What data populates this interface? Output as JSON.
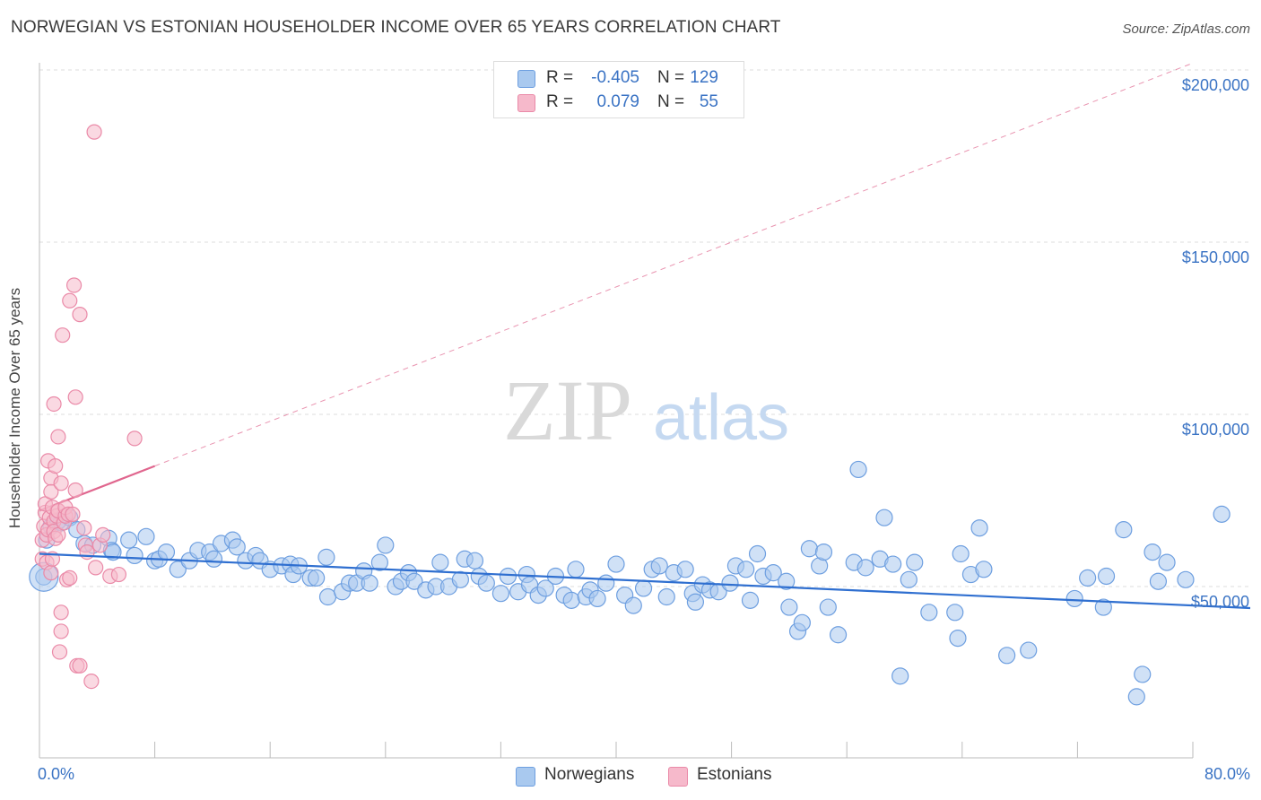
{
  "title": "NORWEGIAN VS ESTONIAN HOUSEHOLDER INCOME OVER 65 YEARS CORRELATION CHART",
  "source": "Source: ZipAtlas.com",
  "watermark": {
    "zip": "ZIP",
    "atlas": "atlas"
  },
  "legend": {
    "rows": [
      {
        "r_label": "R =",
        "r_value": "-0.405",
        "n_label": "N =",
        "n_value": "129"
      },
      {
        "r_label": "R =",
        "r_value": "0.079",
        "n_label": "N =",
        "n_value": "55"
      }
    ]
  },
  "bottom_legend": {
    "norwegians": "Norwegians",
    "estonians": "Estonians"
  },
  "colors": {
    "norwegian_fill": "#a9c9ef",
    "norwegian_stroke": "#6e9fe0",
    "norwegian_line": "#2f6fd0",
    "estonian_fill": "#f6b9cb",
    "estonian_stroke": "#ea8aa8",
    "estonian_line": "#e0668e",
    "tick": "#3a73c4",
    "grid": "#dddddd"
  },
  "chart_data": {
    "type": "scatter",
    "title": "NORWEGIAN VS ESTONIAN HOUSEHOLDER INCOME OVER 65 YEARS CORRELATION CHART",
    "xlabel": "",
    "ylabel": "Householder Income Over 65 years",
    "xlim": [
      0,
      80
    ],
    "ylim": [
      5000,
      210000
    ],
    "x_tick_labels": [
      "0.0%",
      "80.0%"
    ],
    "y_ticks": [
      50000,
      100000,
      150000,
      200000
    ],
    "y_tick_labels": [
      "$50,000",
      "$100,000",
      "$150,000",
      "$200,000"
    ],
    "grid": true,
    "legend_position": "top-center",
    "series": [
      {
        "name": "Norwegians",
        "r": -0.405,
        "n": 129,
        "trend": {
          "x": [
            0,
            80
          ],
          "y": [
            59500,
            44500
          ]
        },
        "points": [
          [
            0.3,
            52800
          ],
          [
            0.5,
            63500
          ],
          [
            0.8,
            67500
          ],
          [
            1.3,
            69000
          ],
          [
            1.5,
            68500
          ],
          [
            2.1,
            70000
          ],
          [
            2.6,
            66500
          ],
          [
            3.1,
            62500
          ],
          [
            3.7,
            62000
          ],
          [
            4.8,
            64000
          ],
          [
            5.0,
            60500
          ],
          [
            5.1,
            60000
          ],
          [
            6.2,
            63500
          ],
          [
            6.6,
            59000
          ],
          [
            7.4,
            64500
          ],
          [
            8.0,
            57500
          ],
          [
            8.3,
            58000
          ],
          [
            8.8,
            60000
          ],
          [
            9.6,
            55000
          ],
          [
            10.4,
            57500
          ],
          [
            11.0,
            60500
          ],
          [
            11.8,
            60000
          ],
          [
            12.1,
            58000
          ],
          [
            12.6,
            62500
          ],
          [
            13.4,
            63500
          ],
          [
            13.7,
            61500
          ],
          [
            14.3,
            57500
          ],
          [
            15.0,
            59000
          ],
          [
            15.3,
            57500
          ],
          [
            16.0,
            55000
          ],
          [
            16.8,
            56000
          ],
          [
            17.4,
            56500
          ],
          [
            17.6,
            53500
          ],
          [
            18.0,
            56000
          ],
          [
            18.8,
            52500
          ],
          [
            19.2,
            52500
          ],
          [
            19.9,
            58500
          ],
          [
            20.0,
            47000
          ],
          [
            21.0,
            48500
          ],
          [
            21.5,
            51000
          ],
          [
            22.0,
            51000
          ],
          [
            22.5,
            54500
          ],
          [
            22.9,
            51000
          ],
          [
            23.6,
            57000
          ],
          [
            24.0,
            62000
          ],
          [
            24.7,
            50000
          ],
          [
            25.1,
            51500
          ],
          [
            25.6,
            54000
          ],
          [
            26.0,
            51500
          ],
          [
            26.8,
            49000
          ],
          [
            27.5,
            50000
          ],
          [
            27.8,
            57000
          ],
          [
            28.4,
            50000
          ],
          [
            29.2,
            52000
          ],
          [
            29.5,
            58000
          ],
          [
            30.2,
            57500
          ],
          [
            30.5,
            53000
          ],
          [
            31.0,
            51000
          ],
          [
            32.0,
            48000
          ],
          [
            32.5,
            53000
          ],
          [
            33.2,
            48500
          ],
          [
            33.8,
            53500
          ],
          [
            34.0,
            50500
          ],
          [
            34.6,
            47500
          ],
          [
            35.1,
            49500
          ],
          [
            35.8,
            53000
          ],
          [
            36.4,
            47500
          ],
          [
            36.9,
            46000
          ],
          [
            37.2,
            55000
          ],
          [
            37.9,
            47000
          ],
          [
            38.2,
            49000
          ],
          [
            38.7,
            46500
          ],
          [
            39.3,
            51000
          ],
          [
            40.0,
            56500
          ],
          [
            40.6,
            47500
          ],
          [
            41.2,
            44500
          ],
          [
            41.9,
            49500
          ],
          [
            42.5,
            55000
          ],
          [
            43.0,
            56000
          ],
          [
            43.5,
            47000
          ],
          [
            44.0,
            54000
          ],
          [
            44.8,
            55000
          ],
          [
            45.3,
            48000
          ],
          [
            45.5,
            45500
          ],
          [
            46.0,
            50500
          ],
          [
            46.5,
            49000
          ],
          [
            47.1,
            48500
          ],
          [
            47.9,
            51000
          ],
          [
            48.3,
            56000
          ],
          [
            49.0,
            55000
          ],
          [
            49.3,
            46000
          ],
          [
            49.8,
            59500
          ],
          [
            50.2,
            53000
          ],
          [
            50.9,
            54000
          ],
          [
            51.8,
            51500
          ],
          [
            52.0,
            44000
          ],
          [
            52.6,
            37000
          ],
          [
            52.9,
            39500
          ],
          [
            53.4,
            61000
          ],
          [
            54.1,
            56000
          ],
          [
            54.4,
            60000
          ],
          [
            54.7,
            44000
          ],
          [
            55.4,
            36000
          ],
          [
            56.5,
            57000
          ],
          [
            56.8,
            84000
          ],
          [
            57.3,
            55500
          ],
          [
            58.3,
            58000
          ],
          [
            58.6,
            70000
          ],
          [
            59.2,
            56500
          ],
          [
            59.7,
            24000
          ],
          [
            60.3,
            52000
          ],
          [
            60.7,
            57000
          ],
          [
            61.7,
            42500
          ],
          [
            63.5,
            42500
          ],
          [
            63.7,
            35000
          ],
          [
            63.9,
            59500
          ],
          [
            64.6,
            53500
          ],
          [
            65.2,
            67000
          ],
          [
            65.5,
            55000
          ],
          [
            67.1,
            30000
          ],
          [
            68.6,
            31500
          ],
          [
            71.8,
            46500
          ],
          [
            72.7,
            52500
          ],
          [
            73.8,
            44000
          ],
          [
            74.0,
            53000
          ],
          [
            75.2,
            66500
          ],
          [
            76.1,
            18000
          ],
          [
            76.5,
            24500
          ],
          [
            77.2,
            60000
          ],
          [
            77.6,
            51500
          ],
          [
            78.2,
            57000
          ],
          [
            79.5,
            52000
          ],
          [
            82.0,
            71000
          ]
        ]
      },
      {
        "name": "Estonians",
        "r": 0.079,
        "n": 55,
        "trend": {
          "x": [
            0,
            80
          ],
          "y": [
            72000,
            202000
          ]
        },
        "trend_solid_until_x": 8,
        "points": [
          [
            0.2,
            58000
          ],
          [
            0.2,
            63500
          ],
          [
            0.3,
            67500
          ],
          [
            0.4,
            71500
          ],
          [
            0.4,
            74000
          ],
          [
            0.5,
            57000
          ],
          [
            0.5,
            65000
          ],
          [
            0.6,
            66500
          ],
          [
            0.6,
            86500
          ],
          [
            0.7,
            70000
          ],
          [
            0.8,
            81500
          ],
          [
            0.8,
            77500
          ],
          [
            0.8,
            54000
          ],
          [
            0.9,
            58000
          ],
          [
            0.9,
            73000
          ],
          [
            1.0,
            69000
          ],
          [
            1.0,
            66000
          ],
          [
            1.0,
            103000
          ],
          [
            1.1,
            85000
          ],
          [
            1.1,
            64000
          ],
          [
            1.2,
            70500
          ],
          [
            1.3,
            72000
          ],
          [
            1.3,
            65000
          ],
          [
            1.3,
            72000
          ],
          [
            1.4,
            31000
          ],
          [
            1.5,
            37000
          ],
          [
            1.5,
            42500
          ],
          [
            1.5,
            80000
          ],
          [
            1.6,
            123000
          ],
          [
            1.7,
            68500
          ],
          [
            1.8,
            70500
          ],
          [
            1.8,
            73000
          ],
          [
            1.9,
            52000
          ],
          [
            2.0,
            71000
          ],
          [
            2.1,
            52500
          ],
          [
            2.1,
            133000
          ],
          [
            2.3,
            71000
          ],
          [
            2.4,
            137500
          ],
          [
            2.5,
            105000
          ],
          [
            2.6,
            27000
          ],
          [
            2.8,
            129000
          ],
          [
            2.8,
            27000
          ],
          [
            3.1,
            67000
          ],
          [
            3.2,
            62000
          ],
          [
            3.6,
            22500
          ],
          [
            3.8,
            182000
          ],
          [
            3.9,
            55500
          ],
          [
            4.2,
            62000
          ],
          [
            4.4,
            65000
          ],
          [
            4.9,
            53000
          ],
          [
            5.5,
            53500
          ],
          [
            6.6,
            93000
          ],
          [
            2.5,
            78000
          ],
          [
            1.3,
            93500
          ],
          [
            3.3,
            60000
          ]
        ]
      }
    ]
  }
}
